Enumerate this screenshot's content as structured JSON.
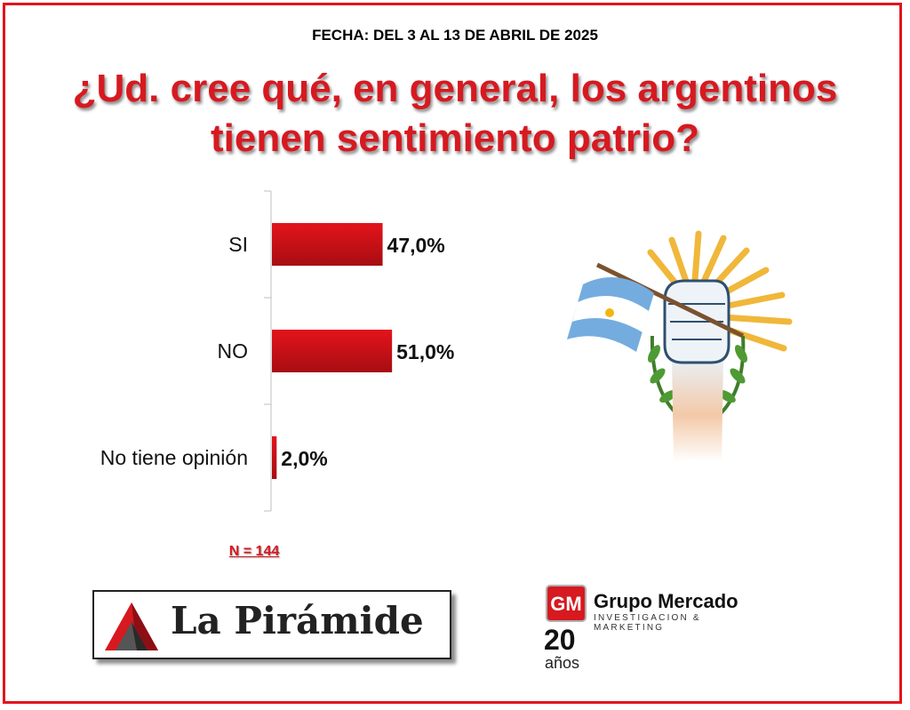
{
  "header": {
    "date": "FECHA: DEL 3 AL 13 DE ABRIL DE 2025",
    "question_line1": "¿Ud. cree qué, en general, los argentinos",
    "question_line2": "tienen sentimiento patrio?"
  },
  "chart_data": {
    "type": "bar",
    "orientation": "horizontal",
    "categories": [
      "SI",
      "NO",
      "No tiene opinión"
    ],
    "values": [
      47.0,
      51.0,
      2.0
    ],
    "value_labels": [
      "47,0%",
      "51,0%",
      "2,0%"
    ],
    "unit": "%",
    "xlim": [
      0,
      100
    ],
    "bar_color": "#e3141b",
    "grid": false
  },
  "sample": {
    "n_label": "N = 144"
  },
  "logos": {
    "left": {
      "name": "La Pirámide"
    },
    "right": {
      "mark": "GM",
      "name": "Grupo Mercado",
      "tagline": "INVESTIGACION & MARKETING",
      "anniversary_number": "20",
      "anniversary_word": "años"
    }
  },
  "illustration": {
    "icon": "raised-fist-with-argentine-flag-icon"
  },
  "colors": {
    "accent": "#d71920",
    "border": "#e3141b"
  }
}
